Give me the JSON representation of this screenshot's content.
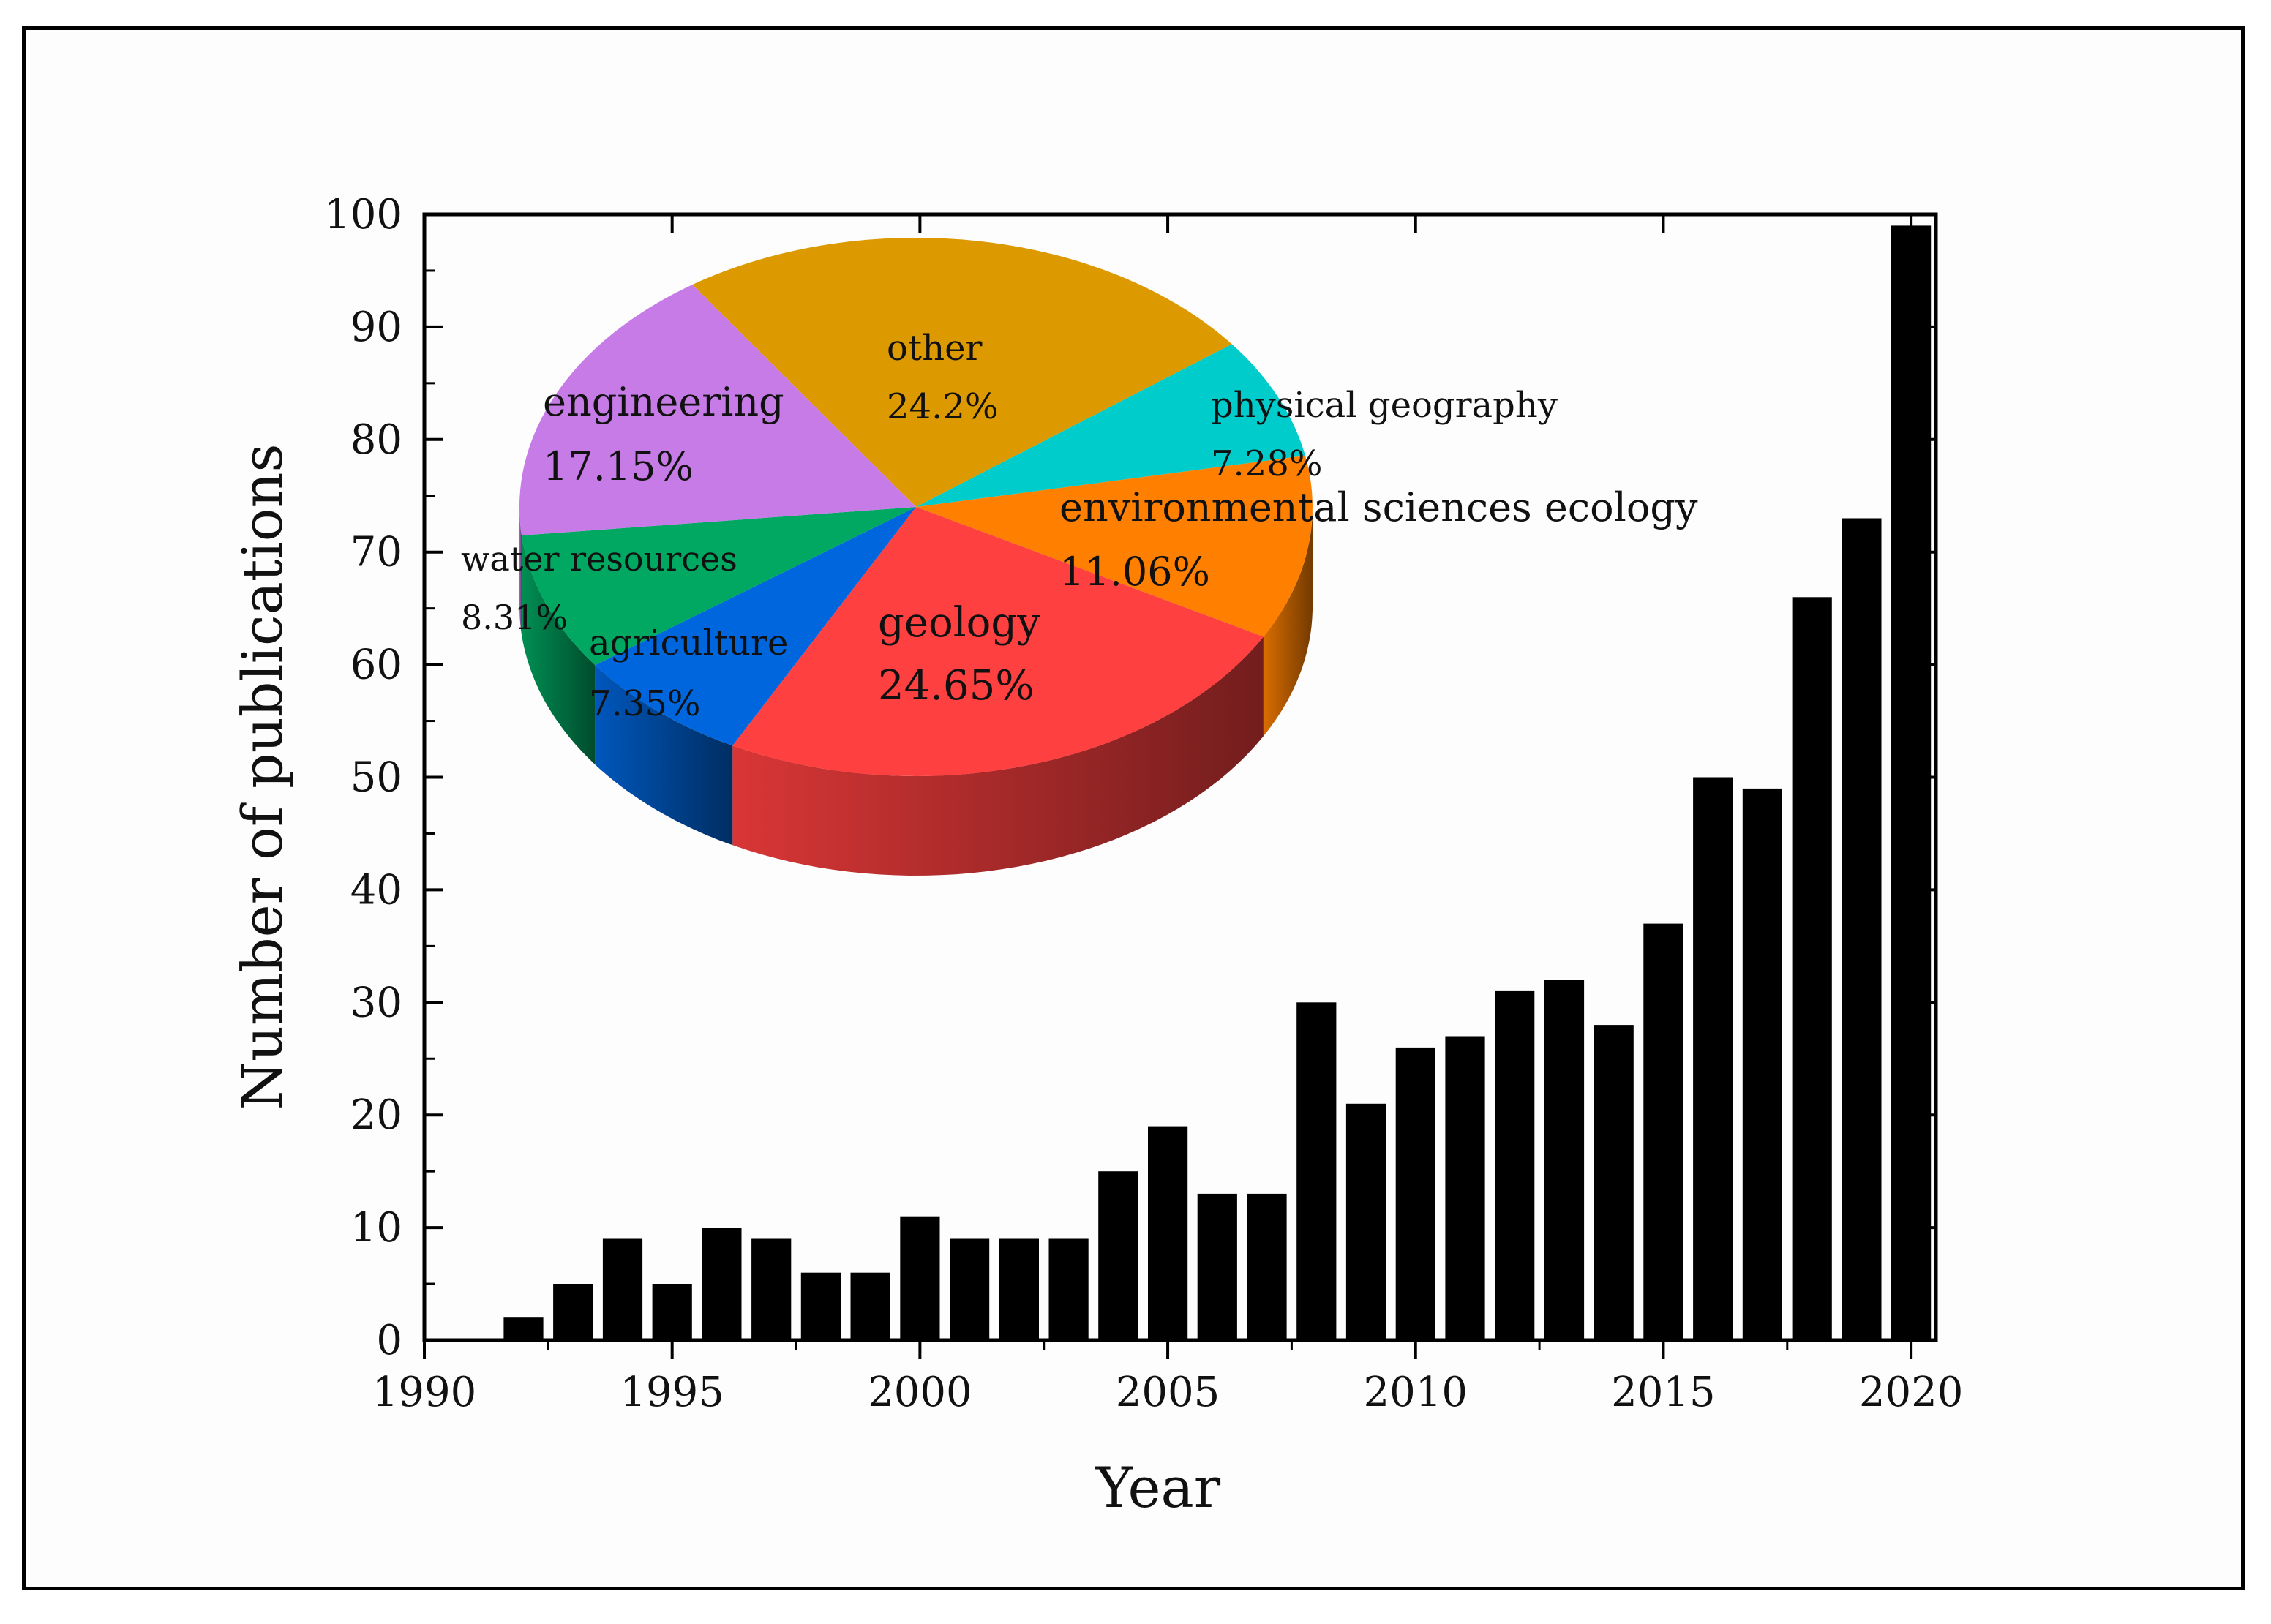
{
  "chart_data": [
    {
      "type": "bar",
      "xlabel": "Year",
      "ylabel": "Number of publications",
      "xlim": [
        1990,
        2020.5
      ],
      "ylim": [
        0,
        100
      ],
      "xticks": [
        1990,
        1995,
        2000,
        2005,
        2010,
        2015,
        2020
      ],
      "yticks": [
        0,
        10,
        20,
        30,
        40,
        50,
        60,
        70,
        80,
        90,
        100
      ],
      "bar_color": "#000000",
      "grid": false,
      "categories": [
        1992,
        1993,
        1994,
        1995,
        1996,
        1997,
        1998,
        1999,
        2000,
        2001,
        2002,
        2003,
        2004,
        2005,
        2006,
        2007,
        2008,
        2009,
        2010,
        2011,
        2012,
        2013,
        2014,
        2015,
        2016,
        2017,
        2018,
        2019,
        2020
      ],
      "values": [
        2,
        5,
        9,
        5,
        10,
        9,
        6,
        6,
        11,
        9,
        9,
        9,
        15,
        19,
        13,
        13,
        30,
        21,
        26,
        27,
        31,
        32,
        28,
        37,
        50,
        49,
        66,
        73,
        99
      ]
    },
    {
      "type": "pie",
      "style": "3d",
      "slices": [
        {
          "name": "other",
          "label": "other",
          "pct_text": "24.2%",
          "value": 24.2,
          "color": "#DD9A00"
        },
        {
          "name": "physical-geography",
          "label": "physical geography",
          "pct_text": "7.28%",
          "value": 7.28,
          "color": "#00CCCC"
        },
        {
          "name": "environmental-sciences-ecology",
          "label": "environmental sciences ecology",
          "pct_text": "11.06%",
          "value": 11.06,
          "color": "#FF8000"
        },
        {
          "name": "geology",
          "label": "geology",
          "pct_text": "24.65%",
          "value": 24.65,
          "color": "#FF4040"
        },
        {
          "name": "agriculture",
          "label": "agriculture",
          "pct_text": "7.35%",
          "value": 7.35,
          "color": "#0066DD"
        },
        {
          "name": "water-resources",
          "label": "water resources",
          "pct_text": "8.31%",
          "value": 8.31,
          "color": "#00A862"
        },
        {
          "name": "engineering",
          "label": "engineering",
          "pct_text": "17.15%",
          "value": 17.15,
          "color": "#C77BE6"
        }
      ]
    }
  ]
}
